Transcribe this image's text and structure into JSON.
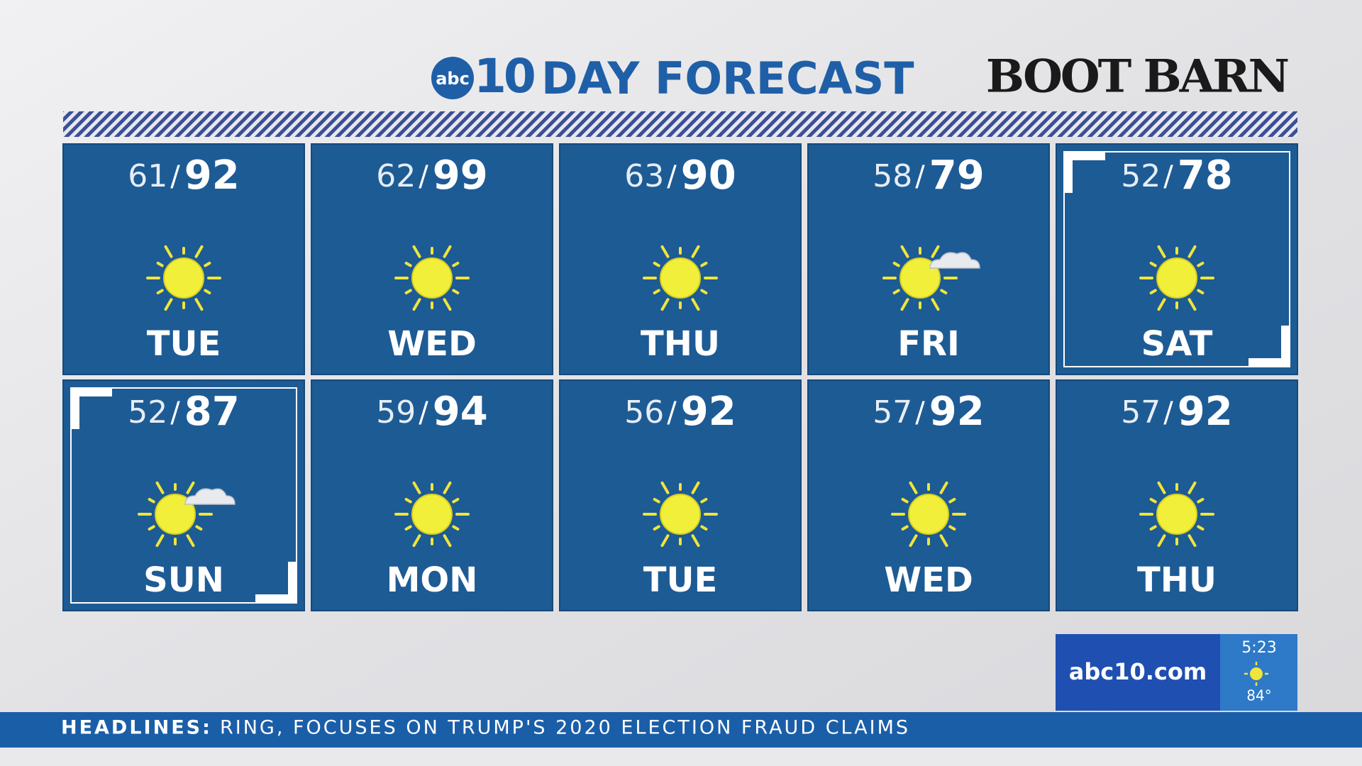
{
  "header": {
    "logo": "abc",
    "logo_number": "10",
    "title": "DAY FORECAST",
    "sponsor": "BOOT BARN"
  },
  "separator": "/",
  "days": [
    {
      "low": 61,
      "high": 92,
      "day": "TUE",
      "cloud": false,
      "highlight": false
    },
    {
      "low": 62,
      "high": 99,
      "day": "WED",
      "cloud": false,
      "highlight": false
    },
    {
      "low": 63,
      "high": 90,
      "day": "THU",
      "cloud": false,
      "highlight": false
    },
    {
      "low": 58,
      "high": 79,
      "day": "FRI",
      "cloud": true,
      "highlight": false
    },
    {
      "low": 52,
      "high": 78,
      "day": "SAT",
      "cloud": false,
      "highlight": true
    },
    {
      "low": 52,
      "high": 87,
      "day": "SUN",
      "cloud": true,
      "highlight": true
    },
    {
      "low": 59,
      "high": 94,
      "day": "MON",
      "cloud": false,
      "highlight": false
    },
    {
      "low": 56,
      "high": 92,
      "day": "TUE",
      "cloud": false,
      "highlight": false
    },
    {
      "low": 57,
      "high": 92,
      "day": "WED",
      "cloud": false,
      "highlight": false
    },
    {
      "low": 57,
      "high": 92,
      "day": "THU",
      "cloud": false,
      "highlight": false
    }
  ],
  "footer": {
    "site": "abc10.com",
    "time": "5:23",
    "temperature": "84°"
  },
  "ticker": {
    "label": "HEADLINES:",
    "text": "RING, FOCUSES ON TRUMP'S 2020 ELECTION FRAUD CLAIMS"
  }
}
